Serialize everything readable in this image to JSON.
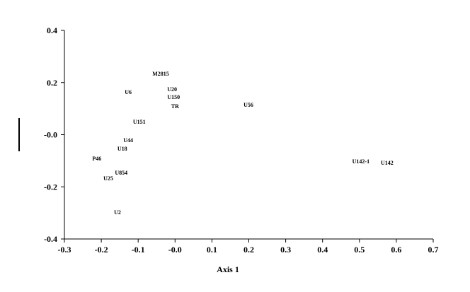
{
  "chart_data": {
    "type": "scatter",
    "x_label": "Axis 1",
    "point_labels": [
      "M2815",
      "U6",
      "U20",
      "U150",
      "TR",
      "U56",
      "U151",
      "U44",
      "U18",
      "P46",
      "U854",
      "U25",
      "U2",
      "U142-1",
      "U142"
    ],
    "x": [
      -0.039,
      -0.127,
      -0.008,
      -0.004,
      0.0,
      0.199,
      -0.097,
      -0.127,
      -0.143,
      -0.212,
      -0.146,
      -0.181,
      -0.156,
      0.504,
      0.575
    ],
    "values": [
      0.235,
      0.164,
      0.175,
      0.145,
      0.11,
      0.115,
      0.05,
      -0.02,
      -0.053,
      -0.091,
      -0.145,
      -0.167,
      -0.297,
      -0.102,
      -0.107
    ],
    "color": "#000000",
    "xlim": [
      -0.3,
      0.7
    ],
    "xticks": [
      -0.3,
      -0.2,
      -0.1,
      {
        "value": 0,
        "label": "-0.0"
      },
      0.1,
      0.2,
      0.3,
      0.4,
      0.5,
      0.6,
      0.7
    ],
    "ylim": [
      -0.4,
      0.4
    ],
    "yticks": [
      -0.4,
      -0.2,
      {
        "value": 0,
        "label": "-0.0"
      },
      0.2,
      0.4
    ],
    "grid": false
  }
}
